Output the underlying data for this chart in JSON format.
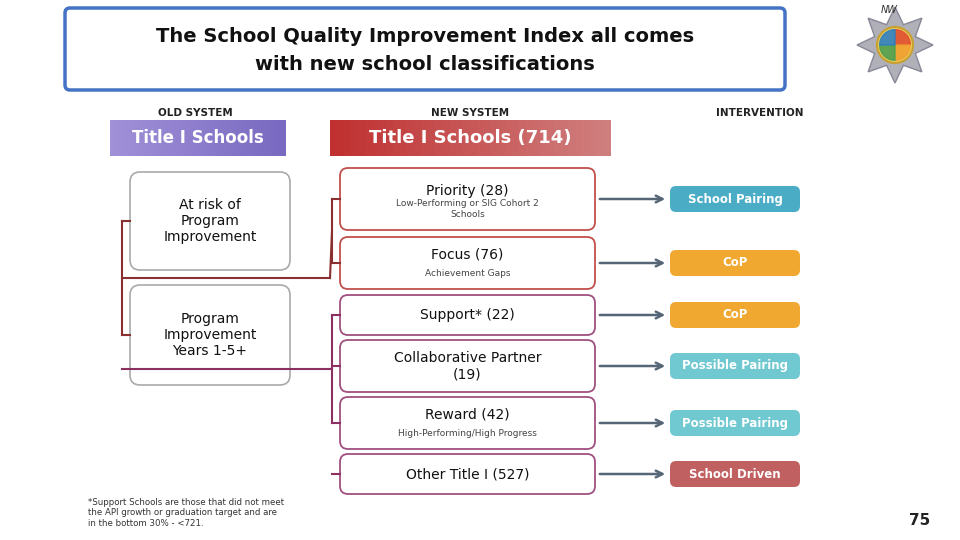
{
  "title_line1": "The School Quality Improvement Index all comes",
  "title_line2": "with new school classifications",
  "bg_color": "#ffffff",
  "old_system_label": "OLD SYSTEM",
  "new_system_label": "NEW SYSTEM",
  "intervention_label": "INTERVENTION",
  "old_title_text": "Title I Schools",
  "old_title_color": "#8b7fc7",
  "new_title_text": "Title I Schools (714)",
  "new_title_color_left": "#c0504d",
  "new_title_color_right": "#c87070",
  "old_sub_boxes": [
    "At risk of\nProgram\nImprovement",
    "Program\nImprovement\nYears 1-5+"
  ],
  "new_sub_boxes": [
    {
      "main": "Priority (28)",
      "sub": "Low-Performing or SIG Cohort 2\nSchools",
      "border": "#c0504d"
    },
    {
      "main": "Focus (76)",
      "sub": "Achievement Gaps",
      "border": "#c0504d"
    },
    {
      "main": "Support* (22)",
      "sub": "",
      "border": "#a05080"
    },
    {
      "main": "Collaborative Partner\n(19)",
      "sub": "",
      "border": "#a05080"
    },
    {
      "main": "Reward (42)",
      "sub": "High-Performing/High Progress",
      "border": "#a05080"
    },
    {
      "main": "Other Title I (527)",
      "sub": "",
      "border": "#a05080"
    }
  ],
  "intervention_boxes": [
    {
      "text": "School Pairing",
      "color": "#4bacc6"
    },
    {
      "text": "CoP",
      "color": "#f0a830"
    },
    {
      "text": "CoP",
      "color": "#f0a830"
    },
    {
      "text": "Possible Pairing",
      "color": "#70c8d0"
    },
    {
      "text": "Possible Pairing",
      "color": "#70c8d0"
    },
    {
      "text": "School Driven",
      "color": "#c06060"
    }
  ],
  "footnote": "*Support Schools are those that did not meet\nthe API growth or graduation target and are\nin the bottom 30% - <721.",
  "page_num": "75",
  "title_border": "#4472c4",
  "connector_color_old": "#8b3030",
  "connector_color_new": "#8b3030"
}
